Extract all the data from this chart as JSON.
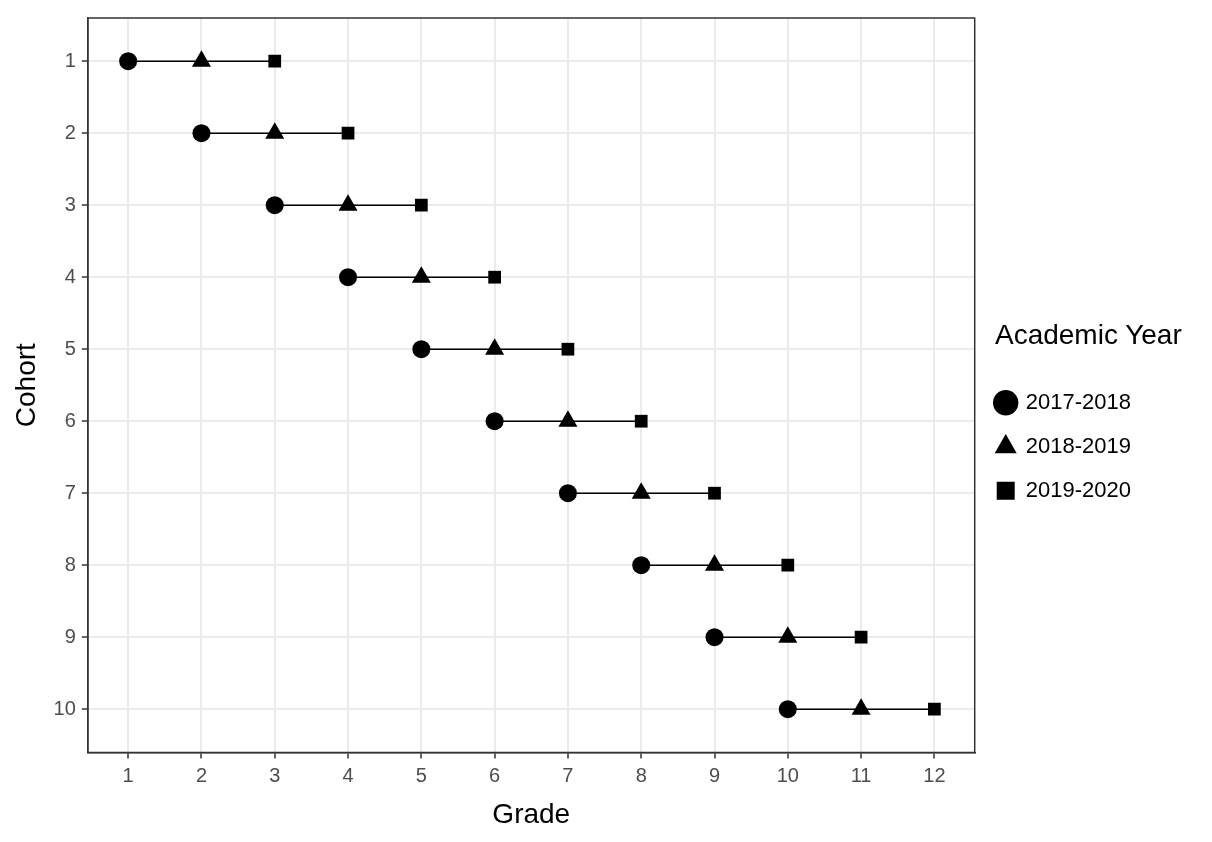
{
  "chart_data": {
    "type": "scatter",
    "xlabel": "Grade",
    "ylabel": "Cohort",
    "legend_title": "Academic Year",
    "legend": "right",
    "grid": true,
    "xlim": [
      0.45,
      12.55
    ],
    "xticks": [
      1,
      2,
      3,
      4,
      5,
      6,
      7,
      8,
      9,
      10,
      11,
      12
    ],
    "ylim": [
      10.6,
      0.4
    ],
    "yticks": [
      1,
      2,
      3,
      4,
      5,
      6,
      7,
      8,
      9,
      10
    ],
    "series": [
      {
        "name": "2017-2018",
        "color": "#000000",
        "marker": "circle",
        "x": [
          1,
          2,
          3,
          4,
          5,
          6,
          7,
          8,
          9,
          10
        ],
        "values": [
          1,
          2,
          3,
          4,
          5,
          6,
          7,
          8,
          9,
          10
        ]
      },
      {
        "name": "2018-2019",
        "color": "#000000",
        "marker": "triangle",
        "x": [
          2,
          3,
          4,
          5,
          6,
          7,
          8,
          9,
          10,
          11
        ],
        "values": [
          1,
          2,
          3,
          4,
          5,
          6,
          7,
          8,
          9,
          10
        ]
      },
      {
        "name": "2019-2020",
        "color": "#000000",
        "marker": "square",
        "x": [
          3,
          4,
          5,
          6,
          7,
          8,
          9,
          10,
          11,
          12
        ],
        "values": [
          1,
          2,
          3,
          4,
          5,
          6,
          7,
          8,
          9,
          10
        ]
      },
      {
        "type": "line",
        "color": "#000000",
        "marker": "none",
        "x": [
          1,
          3
        ],
        "values": [
          1,
          1
        ]
      },
      {
        "type": "line",
        "color": "#000000",
        "marker": "none",
        "x": [
          2,
          4
        ],
        "values": [
          2,
          2
        ]
      },
      {
        "type": "line",
        "color": "#000000",
        "marker": "none",
        "x": [
          3,
          5
        ],
        "values": [
          3,
          3
        ]
      },
      {
        "type": "line",
        "color": "#000000",
        "marker": "none",
        "x": [
          4,
          6
        ],
        "values": [
          4,
          4
        ]
      },
      {
        "type": "line",
        "color": "#000000",
        "marker": "none",
        "x": [
          5,
          7
        ],
        "values": [
          5,
          5
        ]
      },
      {
        "type": "line",
        "color": "#000000",
        "marker": "none",
        "x": [
          6,
          8
        ],
        "values": [
          6,
          6
        ]
      },
      {
        "type": "line",
        "color": "#000000",
        "marker": "none",
        "x": [
          7,
          9
        ],
        "values": [
          7,
          7
        ]
      },
      {
        "type": "line",
        "color": "#000000",
        "marker": "none",
        "x": [
          8,
          10
        ],
        "values": [
          8,
          8
        ]
      },
      {
        "type": "line",
        "color": "#000000",
        "marker": "none",
        "x": [
          9,
          11
        ],
        "values": [
          9,
          9
        ]
      },
      {
        "type": "line",
        "color": "#000000",
        "marker": "none",
        "x": [
          10,
          12
        ],
        "values": [
          10,
          10
        ]
      }
    ]
  }
}
